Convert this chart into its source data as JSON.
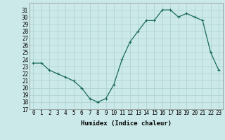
{
  "x": [
    0,
    1,
    2,
    3,
    4,
    5,
    6,
    7,
    8,
    9,
    10,
    11,
    12,
    13,
    14,
    15,
    16,
    17,
    18,
    19,
    20,
    21,
    22,
    23
  ],
  "y": [
    23.5,
    23.5,
    22.5,
    22,
    21.5,
    21,
    20,
    18.5,
    18,
    18.5,
    20.5,
    24,
    26.5,
    28,
    29.5,
    29.5,
    31,
    31,
    30,
    30.5,
    30,
    29.5,
    25,
    22.5
  ],
  "line_color": "#1a6b5a",
  "marker": "+",
  "bg_color": "#cce9e9",
  "grid_color": "#aacfcf",
  "xlabel": "Humidex (Indice chaleur)",
  "xlim": [
    -0.5,
    23.5
  ],
  "ylim": [
    17,
    32
  ],
  "yticks": [
    17,
    18,
    19,
    20,
    21,
    22,
    23,
    24,
    25,
    26,
    27,
    28,
    29,
    30,
    31
  ],
  "xticks": [
    0,
    1,
    2,
    3,
    4,
    5,
    6,
    7,
    8,
    9,
    10,
    11,
    12,
    13,
    14,
    15,
    16,
    17,
    18,
    19,
    20,
    21,
    22,
    23
  ],
  "tick_fontsize": 5.5,
  "xlabel_fontsize": 6.5,
  "marker_size": 3,
  "line_width": 0.9
}
